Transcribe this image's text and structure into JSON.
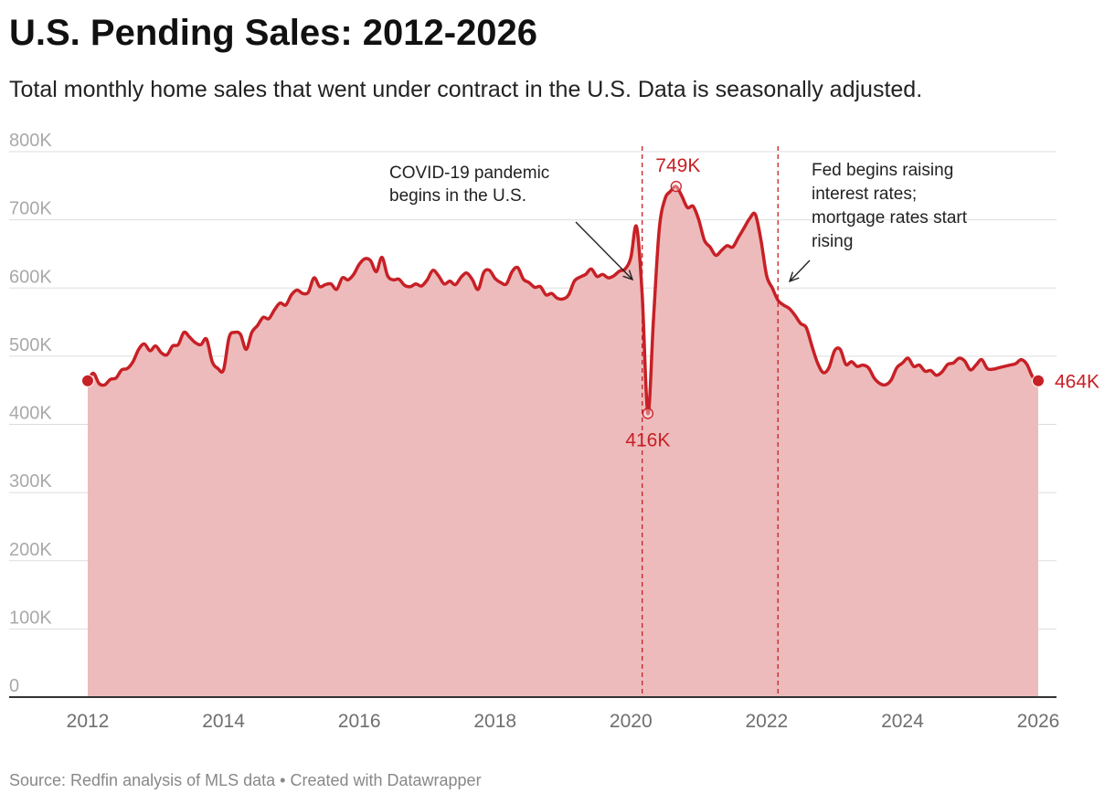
{
  "title": "U.S. Pending Sales: 2012-2026",
  "subtitle": "Total monthly home sales that went under contract in the U.S. Data is seasonally adjusted.",
  "source": "Source: Redfin analysis of MLS data • Created with Datawrapper",
  "colors": {
    "line": "#c72026",
    "area": "#edbbbb",
    "grid": "#dddddd",
    "axis": "#333333",
    "annotation": "#222222"
  },
  "chart_data": {
    "type": "area",
    "title": "U.S. Pending Sales: 2012-2026",
    "xlabel": "",
    "ylabel": "",
    "ylim": [
      0,
      800000
    ],
    "xlim": [
      "2012-01",
      "2026-01"
    ],
    "grid": true,
    "y_ticks": [
      {
        "value": 0,
        "label": "0"
      },
      {
        "value": 100000,
        "label": "100K"
      },
      {
        "value": 200000,
        "label": "200K"
      },
      {
        "value": 300000,
        "label": "300K"
      },
      {
        "value": 400000,
        "label": "400K"
      },
      {
        "value": 500000,
        "label": "500K"
      },
      {
        "value": 600000,
        "label": "600K"
      },
      {
        "value": 700000,
        "label": "700K"
      },
      {
        "value": 800000,
        "label": "800K"
      }
    ],
    "x_ticks": [
      {
        "value": "2012-01",
        "label": "2012"
      },
      {
        "value": "2014-01",
        "label": "2014"
      },
      {
        "value": "2016-01",
        "label": "2016"
      },
      {
        "value": "2018-01",
        "label": "2018"
      },
      {
        "value": "2020-01",
        "label": "2020"
      },
      {
        "value": "2022-01",
        "label": "2022"
      },
      {
        "value": "2024-01",
        "label": "2024"
      },
      {
        "value": "2026-01",
        "label": "2026"
      }
    ],
    "series": [
      {
        "points": [
          [
            "2012-01",
            464000
          ],
          [
            "2012-02",
            475000
          ],
          [
            "2012-03",
            460000
          ],
          [
            "2012-04",
            458000
          ],
          [
            "2012-05",
            466000
          ],
          [
            "2012-06",
            468000
          ],
          [
            "2012-07",
            480000
          ],
          [
            "2012-08",
            482000
          ],
          [
            "2012-09",
            492000
          ],
          [
            "2012-10",
            510000
          ],
          [
            "2012-11",
            518000
          ],
          [
            "2012-12",
            508000
          ],
          [
            "2013-01",
            515000
          ],
          [
            "2013-02",
            505000
          ],
          [
            "2013-03",
            502000
          ],
          [
            "2013-04",
            515000
          ],
          [
            "2013-05",
            517000
          ],
          [
            "2013-06",
            535000
          ],
          [
            "2013-07",
            528000
          ],
          [
            "2013-08",
            520000
          ],
          [
            "2013-09",
            517000
          ],
          [
            "2013-10",
            525000
          ],
          [
            "2013-11",
            492000
          ],
          [
            "2013-12",
            482000
          ],
          [
            "2014-01",
            480000
          ],
          [
            "2014-02",
            528000
          ],
          [
            "2014-03",
            535000
          ],
          [
            "2014-04",
            532000
          ],
          [
            "2014-05",
            510000
          ],
          [
            "2014-06",
            535000
          ],
          [
            "2014-07",
            545000
          ],
          [
            "2014-08",
            557000
          ],
          [
            "2014-09",
            555000
          ],
          [
            "2014-10",
            568000
          ],
          [
            "2014-11",
            578000
          ],
          [
            "2014-12",
            575000
          ],
          [
            "2015-01",
            590000
          ],
          [
            "2015-02",
            597000
          ],
          [
            "2015-03",
            592000
          ],
          [
            "2015-04",
            594000
          ],
          [
            "2015-05",
            615000
          ],
          [
            "2015-06",
            602000
          ],
          [
            "2015-07",
            605000
          ],
          [
            "2015-08",
            606000
          ],
          [
            "2015-09",
            598000
          ],
          [
            "2015-10",
            615000
          ],
          [
            "2015-11",
            612000
          ],
          [
            "2015-12",
            620000
          ],
          [
            "2016-01",
            635000
          ],
          [
            "2016-02",
            643000
          ],
          [
            "2016-03",
            640000
          ],
          [
            "2016-04",
            624000
          ],
          [
            "2016-05",
            645000
          ],
          [
            "2016-06",
            618000
          ],
          [
            "2016-07",
            612000
          ],
          [
            "2016-08",
            613000
          ],
          [
            "2016-09",
            604000
          ],
          [
            "2016-10",
            602000
          ],
          [
            "2016-11",
            606000
          ],
          [
            "2016-12",
            603000
          ],
          [
            "2017-01",
            612000
          ],
          [
            "2017-02",
            626000
          ],
          [
            "2017-03",
            618000
          ],
          [
            "2017-04",
            606000
          ],
          [
            "2017-05",
            610000
          ],
          [
            "2017-06",
            605000
          ],
          [
            "2017-07",
            616000
          ],
          [
            "2017-08",
            622000
          ],
          [
            "2017-09",
            612000
          ],
          [
            "2017-10",
            598000
          ],
          [
            "2017-11",
            623000
          ],
          [
            "2017-12",
            626000
          ],
          [
            "2018-01",
            614000
          ],
          [
            "2018-02",
            608000
          ],
          [
            "2018-03",
            606000
          ],
          [
            "2018-04",
            624000
          ],
          [
            "2018-05",
            630000
          ],
          [
            "2018-06",
            613000
          ],
          [
            "2018-07",
            608000
          ],
          [
            "2018-08",
            601000
          ],
          [
            "2018-09",
            602000
          ],
          [
            "2018-10",
            590000
          ],
          [
            "2018-11",
            592000
          ],
          [
            "2018-12",
            585000
          ],
          [
            "2019-01",
            584000
          ],
          [
            "2019-02",
            590000
          ],
          [
            "2019-03",
            610000
          ],
          [
            "2019-04",
            616000
          ],
          [
            "2019-05",
            620000
          ],
          [
            "2019-06",
            628000
          ],
          [
            "2019-07",
            617000
          ],
          [
            "2019-08",
            620000
          ],
          [
            "2019-09",
            615000
          ],
          [
            "2019-10",
            618000
          ],
          [
            "2019-11",
            625000
          ],
          [
            "2019-12",
            628000
          ],
          [
            "2020-01",
            645000
          ],
          [
            "2020-02",
            690000
          ],
          [
            "2020-03",
            590000
          ],
          [
            "2020-04",
            416000
          ],
          [
            "2020-05",
            555000
          ],
          [
            "2020-06",
            685000
          ],
          [
            "2020-07",
            730000
          ],
          [
            "2020-08",
            742000
          ],
          [
            "2020-09",
            749000
          ],
          [
            "2020-10",
            735000
          ],
          [
            "2020-11",
            718000
          ],
          [
            "2020-12",
            720000
          ],
          [
            "2021-01",
            700000
          ],
          [
            "2021-02",
            670000
          ],
          [
            "2021-03",
            660000
          ],
          [
            "2021-04",
            648000
          ],
          [
            "2021-05",
            655000
          ],
          [
            "2021-06",
            662000
          ],
          [
            "2021-07",
            660000
          ],
          [
            "2021-08",
            674000
          ],
          [
            "2021-09",
            688000
          ],
          [
            "2021-10",
            702000
          ],
          [
            "2021-11",
            708000
          ],
          [
            "2021-12",
            670000
          ],
          [
            "2022-01",
            618000
          ],
          [
            "2022-02",
            600000
          ],
          [
            "2022-03",
            582000
          ],
          [
            "2022-04",
            575000
          ],
          [
            "2022-05",
            570000
          ],
          [
            "2022-06",
            560000
          ],
          [
            "2022-07",
            548000
          ],
          [
            "2022-08",
            542000
          ],
          [
            "2022-09",
            515000
          ],
          [
            "2022-10",
            490000
          ],
          [
            "2022-11",
            476000
          ],
          [
            "2022-12",
            483000
          ],
          [
            "2023-01",
            508000
          ],
          [
            "2023-02",
            510000
          ],
          [
            "2023-03",
            488000
          ],
          [
            "2023-04",
            492000
          ],
          [
            "2023-05",
            485000
          ],
          [
            "2023-06",
            487000
          ],
          [
            "2023-07",
            483000
          ],
          [
            "2023-08",
            468000
          ],
          [
            "2023-09",
            460000
          ],
          [
            "2023-10",
            458000
          ],
          [
            "2023-11",
            465000
          ],
          [
            "2023-12",
            483000
          ],
          [
            "2024-01",
            490000
          ],
          [
            "2024-02",
            497000
          ],
          [
            "2024-03",
            485000
          ],
          [
            "2024-04",
            487000
          ],
          [
            "2024-05",
            478000
          ],
          [
            "2024-06",
            479000
          ],
          [
            "2024-07",
            472000
          ],
          [
            "2024-08",
            477000
          ],
          [
            "2024-09",
            488000
          ],
          [
            "2024-10",
            490000
          ],
          [
            "2024-11",
            497000
          ],
          [
            "2024-12",
            493000
          ],
          [
            "2025-01",
            480000
          ],
          [
            "2025-02",
            487000
          ],
          [
            "2025-03",
            495000
          ],
          [
            "2025-04",
            482000
          ],
          [
            "2025-05",
            481000
          ],
          [
            "2025-06",
            483000
          ],
          [
            "2025-07",
            485000
          ],
          [
            "2025-08",
            487000
          ],
          [
            "2025-09",
            489000
          ],
          [
            "2025-10",
            495000
          ],
          [
            "2025-11",
            488000
          ],
          [
            "2025-12",
            470000
          ],
          [
            "2026-01",
            464000
          ]
        ]
      }
    ],
    "highlight_points": [
      {
        "x": "2012-01",
        "y": 464000,
        "style": "filled",
        "label": ""
      },
      {
        "x": "2020-04",
        "y": 416000,
        "style": "hollow",
        "label": "416K"
      },
      {
        "x": "2020-09",
        "y": 749000,
        "style": "hollow",
        "label": "749K"
      },
      {
        "x": "2026-01",
        "y": 464000,
        "style": "filled",
        "label": "464K"
      }
    ],
    "reference_lines": [
      {
        "x": "2020-03"
      },
      {
        "x": "2022-03"
      }
    ],
    "annotations": [
      {
        "lines": [
          "COVID-19 pandemic",
          "begins in the U.S."
        ]
      },
      {
        "lines": [
          "Fed begins raising",
          "interest rates;",
          "mortgage rates start",
          "rising"
        ]
      }
    ]
  }
}
